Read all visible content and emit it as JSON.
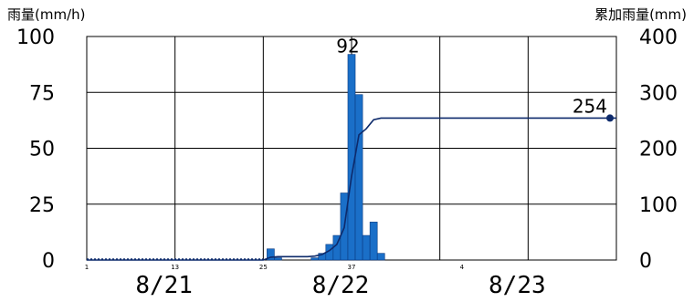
{
  "chart_data": {
    "type": "bar",
    "y_left_label": "雨量(mm/h)",
    "y_right_label": "累加雨量(mm)",
    "y_left_ticks": [
      "100",
      "75",
      "50",
      "25",
      "0"
    ],
    "y_right_ticks": [
      "400",
      "300",
      "200",
      "100",
      "0"
    ],
    "y_left_range": [
      0,
      100
    ],
    "y_right_range": [
      0,
      400
    ],
    "date_labels": [
      "8/21",
      "8/22",
      "8/23"
    ],
    "hour_ticks": [
      "1",
      "13",
      "25",
      "37",
      "4"
    ],
    "x_range_hours": [
      1,
      73
    ],
    "hourly_rain": [
      {
        "hour": 26,
        "value": 5
      },
      {
        "hour": 27,
        "value": 1
      },
      {
        "hour": 32,
        "value": 1
      },
      {
        "hour": 33,
        "value": 3
      },
      {
        "hour": 34,
        "value": 7
      },
      {
        "hour": 35,
        "value": 11
      },
      {
        "hour": 36,
        "value": 30
      },
      {
        "hour": 37,
        "value": 92
      },
      {
        "hour": 38,
        "value": 74
      },
      {
        "hour": 39,
        "value": 11
      },
      {
        "hour": 40,
        "value": 17
      },
      {
        "hour": 41,
        "value": 3
      }
    ],
    "cumulative": [
      {
        "hour": 1,
        "value": 0
      },
      {
        "hour": 25,
        "value": 0
      },
      {
        "hour": 26,
        "value": 5
      },
      {
        "hour": 27,
        "value": 6
      },
      {
        "hour": 31,
        "value": 6
      },
      {
        "hour": 32,
        "value": 7
      },
      {
        "hour": 33,
        "value": 10
      },
      {
        "hour": 34,
        "value": 17
      },
      {
        "hour": 35,
        "value": 28
      },
      {
        "hour": 36,
        "value": 58
      },
      {
        "hour": 37,
        "value": 150
      },
      {
        "hour": 38,
        "value": 224
      },
      {
        "hour": 39,
        "value": 235
      },
      {
        "hour": 40,
        "value": 251
      },
      {
        "hour": 41,
        "value": 254
      },
      {
        "hour": 73,
        "value": 254
      }
    ],
    "peak_label": "92",
    "total_label": "254",
    "bar_color": "#1a6fc8",
    "line_color": "#0d2a6b",
    "grid": true
  }
}
